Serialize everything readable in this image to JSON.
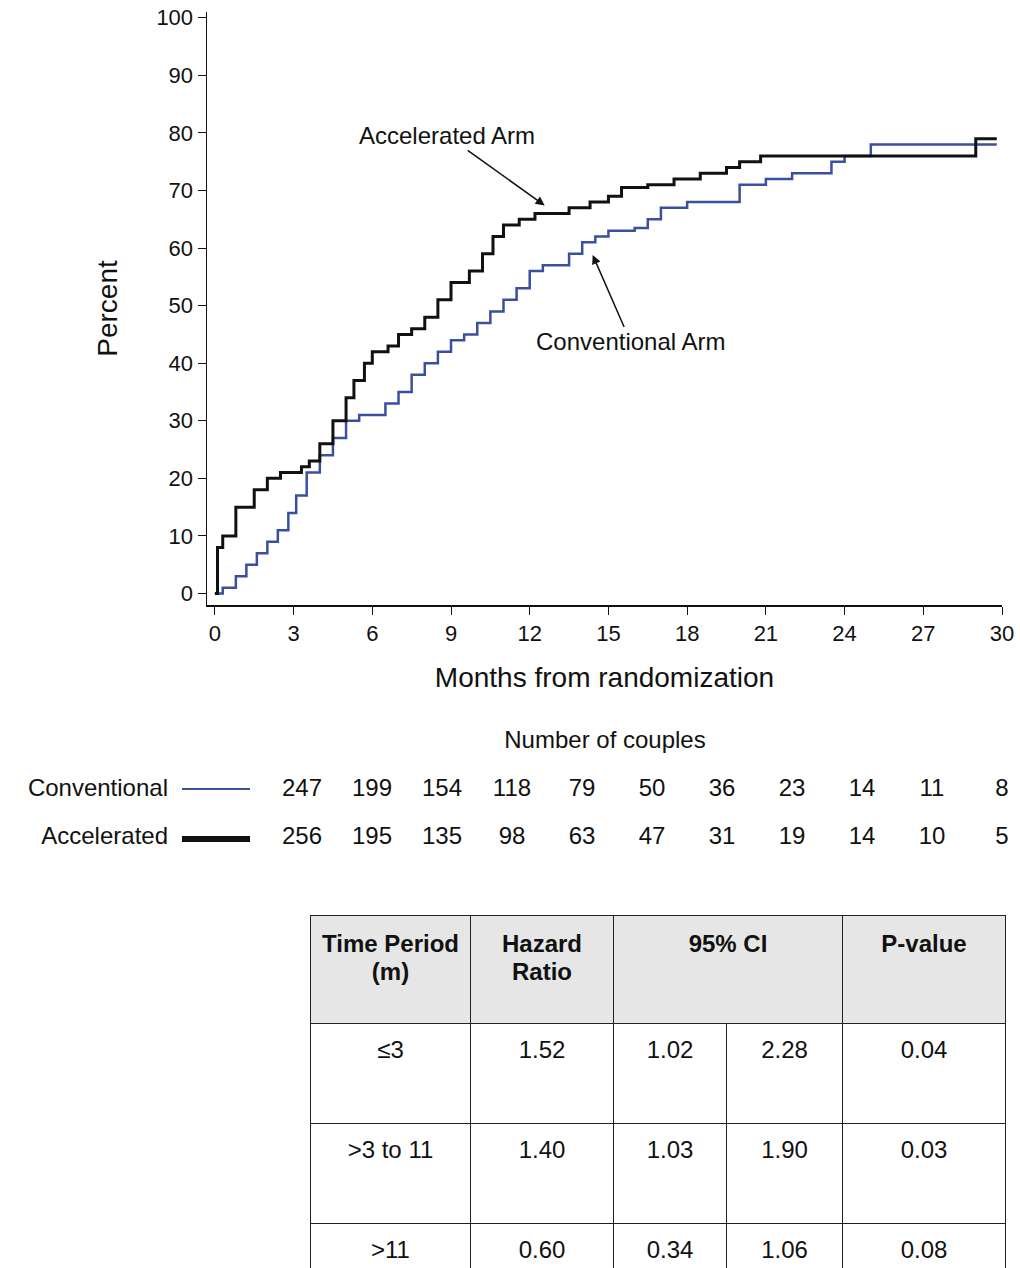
{
  "chart_data": {
    "type": "step_line",
    "xlabel": "Months from randomization",
    "ylabel": "Percent",
    "xlim": [
      -0.3,
      30
    ],
    "ylim": [
      -2,
      101
    ],
    "xticks": [
      0,
      3,
      6,
      9,
      12,
      15,
      18,
      21,
      24,
      27,
      30
    ],
    "yticks": [
      0,
      10,
      20,
      30,
      40,
      50,
      60,
      70,
      80,
      90,
      100
    ],
    "grid": false,
    "at_risk_title": "Number of couples",
    "series": [
      {
        "name": "Conventional",
        "color": "#3a4fa0",
        "x": [
          0,
          0.3,
          0.8,
          1.2,
          1.6,
          2,
          2.4,
          2.8,
          3.1,
          3.5,
          4,
          4.5,
          5,
          5.5,
          6.5,
          7,
          7.5,
          8,
          8.5,
          9,
          9.5,
          10,
          10.5,
          11,
          11.5,
          12,
          12.5,
          13.5,
          14,
          14.5,
          15,
          16,
          16.5,
          17,
          18,
          19,
          20,
          21,
          22,
          23.5,
          24,
          25,
          29.8
        ],
        "values": [
          0,
          1,
          3,
          5,
          7,
          9,
          11,
          14,
          17,
          21,
          24,
          27,
          30,
          31,
          33,
          35,
          38,
          40,
          42,
          44,
          45,
          47,
          49,
          51,
          53,
          56,
          57,
          59,
          61,
          62,
          63,
          63.5,
          65,
          67,
          68,
          68,
          71,
          72,
          73,
          75,
          76,
          78,
          78
        ],
        "at_risk": [
          247,
          199,
          154,
          118,
          79,
          50,
          36,
          23,
          14,
          11,
          8
        ]
      },
      {
        "name": "Accelerated",
        "color": "#111111",
        "x": [
          0,
          0.1,
          0.3,
          0.8,
          1.5,
          2,
          2.5,
          3.3,
          3.6,
          4,
          4.5,
          5,
          5.3,
          5.7,
          6,
          6.6,
          7,
          7.5,
          8,
          8.5,
          9,
          9.7,
          10.2,
          10.6,
          11,
          11.6,
          12.2,
          13.5,
          14.3,
          15,
          15.5,
          16.5,
          17.5,
          18.5,
          19.5,
          20,
          20.8,
          24,
          29,
          29.8
        ],
        "values": [
          0,
          8,
          10,
          15,
          18,
          20,
          21,
          22,
          23,
          26,
          30,
          34,
          37,
          40,
          42,
          43,
          45,
          46,
          48,
          51,
          54,
          56,
          59,
          62,
          64,
          65,
          66,
          67,
          68,
          69,
          70.5,
          71,
          72,
          73,
          74,
          75,
          76,
          76,
          79,
          79
        ],
        "at_risk": [
          256,
          195,
          135,
          98,
          63,
          47,
          31,
          19,
          14,
          10,
          5
        ]
      }
    ],
    "annotations": [
      {
        "text": "Accelerated Arm",
        "x": 12.57,
        "y": 67.4
      },
      {
        "text": "Conventional Arm",
        "x": 14.4,
        "y": 58.8
      }
    ]
  },
  "table": {
    "header": [
      "Time Period (m)",
      "Hazard Ratio",
      "95% CI",
      "P-value"
    ],
    "rows": [
      [
        "≤3",
        "1.52",
        "1.02",
        "2.28",
        "0.04"
      ],
      [
        ">3 to 11",
        "1.40",
        "1.03",
        "1.90",
        "0.03"
      ],
      [
        ">11",
        "0.60",
        "0.34",
        "1.06",
        "0.08"
      ]
    ]
  }
}
